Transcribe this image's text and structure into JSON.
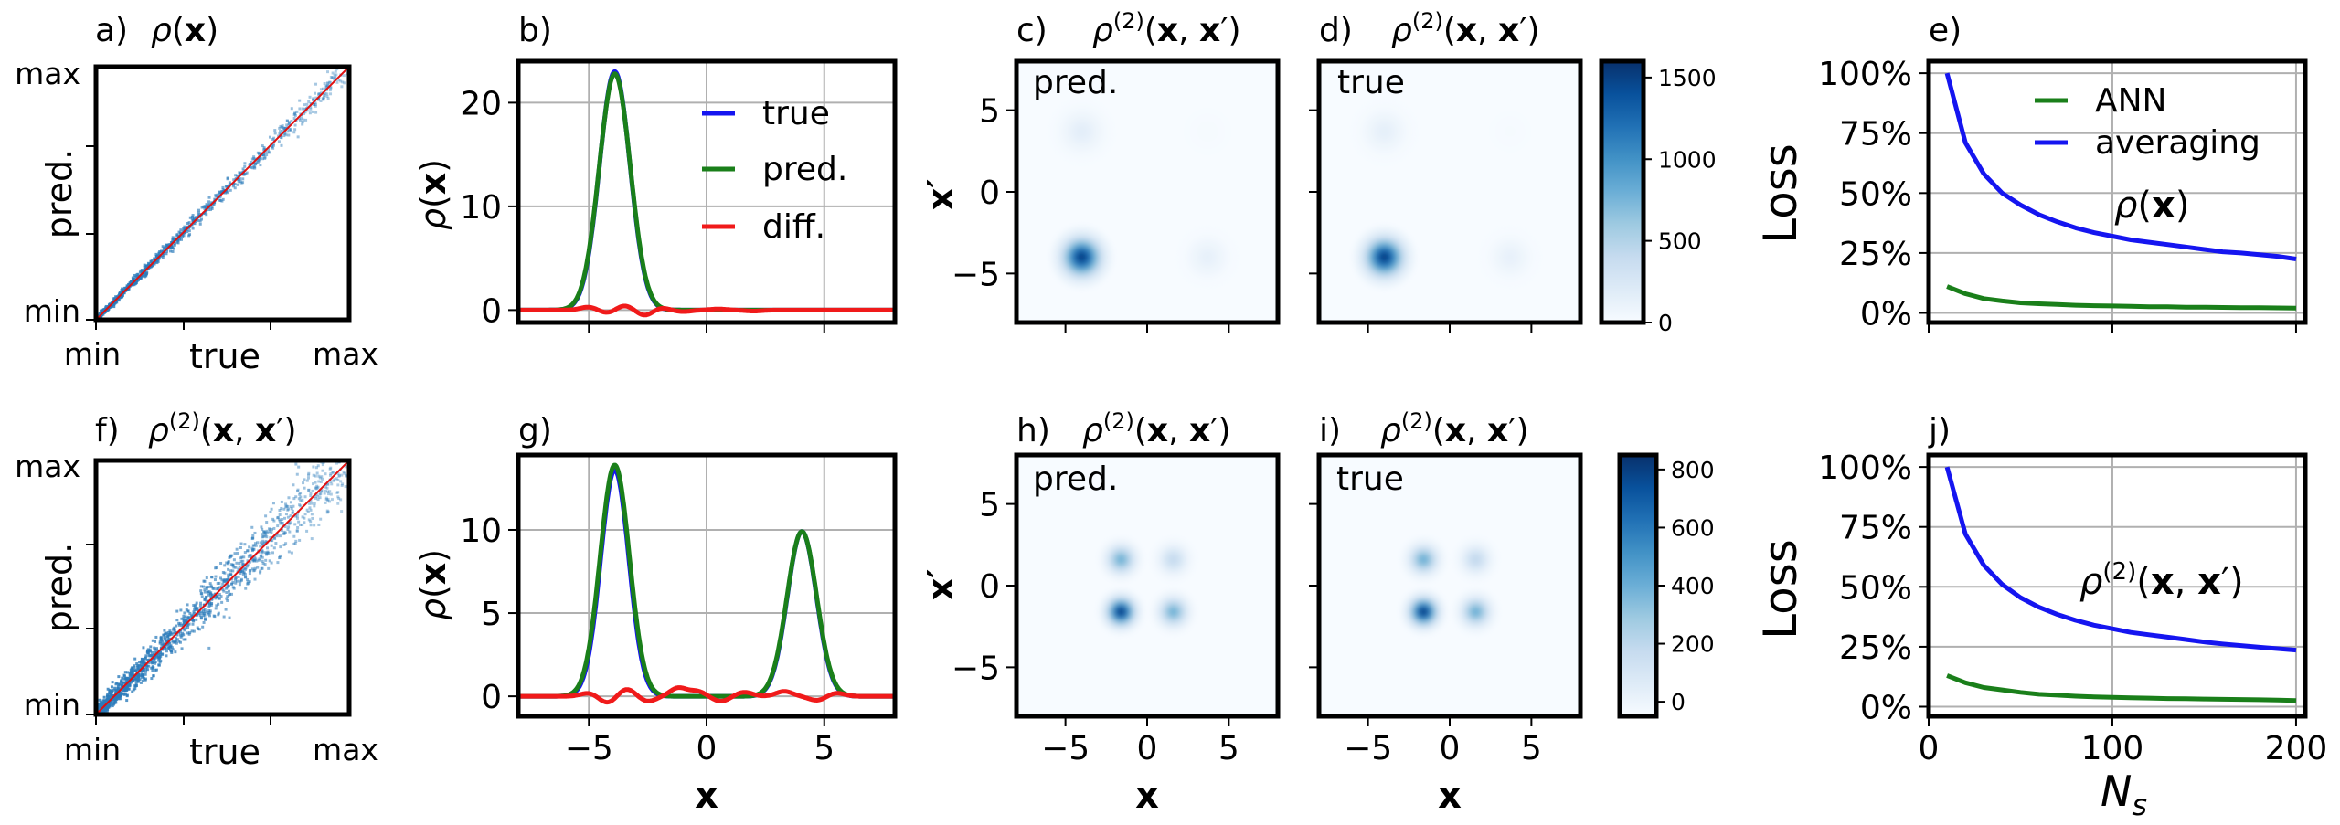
{
  "figure": {
    "background": "#ffffff",
    "border_color": "#000000"
  },
  "colors": {
    "true": "#1515f0",
    "pred": "#1a7f1a",
    "diff": "#f01a1a",
    "grid": "#b0b0b0",
    "diag": "#e01010"
  },
  "chart_data": [
    {
      "id": "a",
      "type": "scatter",
      "panel_label": "a)",
      "title": "ρ(x)",
      "xlabel": "true",
      "ylabel": "pred.",
      "tick_labels": {
        "min": "min",
        "max": "max"
      },
      "xlim": [
        0,
        1
      ],
      "ylim": [
        0,
        1
      ],
      "spread": 0.018,
      "points_count": 900,
      "description_values": {
        "diagonal": [
          [
            0,
            0
          ],
          [
            1,
            1
          ]
        ]
      }
    },
    {
      "id": "b",
      "type": "line",
      "panel_label": "b)",
      "ylabel": "ρ(x)",
      "xlim": [
        -8,
        8
      ],
      "ylim": [
        -1.2,
        24
      ],
      "xticks": [
        -5,
        0,
        5
      ],
      "yticks": [
        0,
        10,
        20
      ],
      "legend": {
        "position": "top-right",
        "entries": [
          "true",
          "pred.",
          "diff."
        ]
      },
      "series": [
        {
          "name": "true",
          "color": "#1515f0",
          "peaks": [
            {
              "center": -3.9,
              "height": 23.0,
              "width": 0.65
            }
          ]
        },
        {
          "name": "pred.",
          "color": "#1a7f1a",
          "peaks": [
            {
              "center": -3.9,
              "height": 22.8,
              "width": 0.66
            }
          ]
        },
        {
          "name": "diff.",
          "color": "#f01a1a",
          "wiggles": [
            [
              -5,
              0.3
            ],
            [
              -4.2,
              -0.3
            ],
            [
              -3.5,
              0.45
            ],
            [
              -2.6,
              -0.55
            ],
            [
              -2.0,
              0.25
            ],
            [
              -1.0,
              -0.15
            ],
            [
              0.5,
              0.1
            ],
            [
              2.0,
              -0.1
            ]
          ]
        }
      ]
    },
    {
      "id": "c",
      "type": "heatmap",
      "panel_label": "c)",
      "title": "ρ(2)(x,x′)",
      "inset_label": "pred.",
      "xlim": [
        -8,
        8
      ],
      "ylim": [
        -8,
        8
      ],
      "yticks": [
        -5,
        0,
        5
      ],
      "ylabel": "x′",
      "blobs": [
        {
          "x": -4,
          "y": -4,
          "value": 1550,
          "sigma": 0.75
        },
        {
          "x": -4,
          "y": 3.7,
          "value": 170,
          "sigma": 0.8
        },
        {
          "x": 3.7,
          "y": -4,
          "value": 140,
          "sigma": 0.75
        },
        {
          "x": 3.7,
          "y": 3.7,
          "value": 20,
          "sigma": 0.8
        }
      ]
    },
    {
      "id": "d",
      "type": "heatmap",
      "panel_label": "d)",
      "title": "ρ(2)(x,x′)",
      "inset_label": "true",
      "xlim": [
        -8,
        8
      ],
      "ylim": [
        -8,
        8
      ],
      "blobs": [
        {
          "x": -4,
          "y": -4,
          "value": 1550,
          "sigma": 0.75
        },
        {
          "x": -4,
          "y": 3.7,
          "value": 150,
          "sigma": 0.8
        },
        {
          "x": 3.7,
          "y": -4,
          "value": 130,
          "sigma": 0.75
        },
        {
          "x": 3.7,
          "y": 3.7,
          "value": 15,
          "sigma": 0.8
        }
      ]
    },
    {
      "id": "colorbar_top",
      "type": "colorbar",
      "range": [
        0,
        1600
      ],
      "ticks": [
        0,
        500,
        1000,
        1500
      ]
    },
    {
      "id": "e",
      "type": "line",
      "panel_label": "e)",
      "ylabel": "Loss",
      "annotation": "ρ(x)",
      "xlim": [
        0,
        205
      ],
      "ylim": [
        -4,
        105
      ],
      "xticks": [
        0,
        100,
        200
      ],
      "yticks": [
        0,
        25,
        50,
        75,
        100
      ],
      "ytick_labels": [
        "0%",
        "25%",
        "50%",
        "75%",
        "100%"
      ],
      "legend": {
        "position": "top-right",
        "entries": [
          "ANN",
          "averaging"
        ]
      },
      "series": [
        {
          "name": "averaging",
          "color": "#1515f0",
          "x": [
            10,
            20,
            30,
            40,
            50,
            60,
            70,
            80,
            90,
            100,
            110,
            120,
            130,
            140,
            150,
            160,
            170,
            180,
            190,
            200
          ],
          "y": [
            100,
            71,
            58,
            50,
            45,
            41,
            38,
            35.5,
            33.5,
            32,
            30.5,
            29.5,
            28.5,
            27.5,
            26.5,
            25.5,
            25,
            24.3,
            23.6,
            22.5
          ]
        },
        {
          "name": "ANN",
          "color": "#1a7f1a",
          "x": [
            10,
            20,
            30,
            40,
            50,
            60,
            70,
            80,
            90,
            100,
            110,
            120,
            130,
            140,
            150,
            160,
            170,
            180,
            190,
            200
          ],
          "y": [
            11,
            8,
            6,
            5,
            4.2,
            3.8,
            3.5,
            3.2,
            3.0,
            2.9,
            2.8,
            2.6,
            2.6,
            2.4,
            2.4,
            2.3,
            2.2,
            2.2,
            2.1,
            2.0
          ]
        }
      ]
    },
    {
      "id": "f",
      "type": "scatter",
      "panel_label": "f)",
      "title": "ρ(2)(x,x′)",
      "xlabel": "true",
      "ylabel": "pred.",
      "tick_labels": {
        "min": "min",
        "max": "max"
      },
      "xlim": [
        0,
        1
      ],
      "ylim": [
        0,
        1
      ],
      "spread": 0.05,
      "points_count": 1400,
      "description_values": {
        "diagonal": [
          [
            0,
            0
          ],
          [
            1,
            1
          ]
        ]
      }
    },
    {
      "id": "g",
      "type": "line",
      "panel_label": "g)",
      "ylabel": "ρ(x)",
      "xlabel": "x",
      "xlim": [
        -8,
        8
      ],
      "ylim": [
        -1.2,
        14.5
      ],
      "xticks": [
        -5,
        0,
        5
      ],
      "yticks": [
        0,
        5,
        10
      ],
      "series": [
        {
          "name": "true",
          "color": "#1515f0",
          "peaks": [
            {
              "center": -3.9,
              "height": 13.6,
              "width": 0.6
            },
            {
              "center": 4.05,
              "height": 9.9,
              "width": 0.62
            }
          ]
        },
        {
          "name": "pred.",
          "color": "#1a7f1a",
          "peaks": [
            {
              "center": -3.9,
              "height": 13.9,
              "width": 0.62
            },
            {
              "center": 4.05,
              "height": 9.9,
              "width": 0.63
            }
          ]
        },
        {
          "name": "diff.",
          "color": "#f01a1a",
          "wiggles": [
            [
              -5,
              0.2
            ],
            [
              -4.2,
              -0.4
            ],
            [
              -3.4,
              0.45
            ],
            [
              -2.5,
              -0.3
            ],
            [
              -1.2,
              0.5
            ],
            [
              -0.4,
              0.3
            ],
            [
              0.6,
              -0.3
            ],
            [
              1.6,
              0.25
            ],
            [
              3.3,
              0.3
            ],
            [
              4.7,
              -0.25
            ],
            [
              5.5,
              0.2
            ]
          ]
        }
      ]
    },
    {
      "id": "h",
      "type": "heatmap",
      "panel_label": "h)",
      "title": "ρ(2)(x,x′)",
      "inset_label": "pred.",
      "xlim": [
        -8,
        8
      ],
      "ylim": [
        -8,
        8
      ],
      "xticks": [
        -5,
        0,
        5
      ],
      "yticks": [
        -5,
        0,
        5
      ],
      "xlabel": "x",
      "ylabel": "x′",
      "blobs": [
        {
          "x": -1.6,
          "y": -1.6,
          "value": 820,
          "sigma": 0.55
        },
        {
          "x": 1.6,
          "y": -1.6,
          "value": 430,
          "sigma": 0.55
        },
        {
          "x": -1.6,
          "y": 1.6,
          "value": 430,
          "sigma": 0.55
        },
        {
          "x": 1.6,
          "y": 1.6,
          "value": 220,
          "sigma": 0.55
        }
      ]
    },
    {
      "id": "i",
      "type": "heatmap",
      "panel_label": "i)",
      "title": "ρ(2)(x,x′)",
      "inset_label": "true",
      "xlim": [
        -8,
        8
      ],
      "ylim": [
        -8,
        8
      ],
      "xticks": [
        -5,
        0,
        5
      ],
      "xlabel": "x",
      "blobs": [
        {
          "x": -1.6,
          "y": -1.6,
          "value": 820,
          "sigma": 0.55
        },
        {
          "x": 1.6,
          "y": -1.6,
          "value": 440,
          "sigma": 0.55
        },
        {
          "x": -1.6,
          "y": 1.6,
          "value": 440,
          "sigma": 0.55
        },
        {
          "x": 1.6,
          "y": 1.6,
          "value": 230,
          "sigma": 0.55
        }
      ]
    },
    {
      "id": "colorbar_bottom",
      "type": "colorbar",
      "range": [
        -50,
        850
      ],
      "ticks": [
        0,
        200,
        400,
        600,
        800
      ]
    },
    {
      "id": "j",
      "type": "line",
      "panel_label": "j)",
      "ylabel": "Loss",
      "xlabel": "N_s",
      "annotation": "ρ(2)(x,x′)",
      "xlim": [
        0,
        205
      ],
      "ylim": [
        -4,
        105
      ],
      "xticks": [
        0,
        100,
        200
      ],
      "yticks": [
        0,
        25,
        50,
        75,
        100
      ],
      "ytick_labels": [
        "0%",
        "25%",
        "50%",
        "75%",
        "100%"
      ],
      "series": [
        {
          "name": "averaging",
          "color": "#1515f0",
          "x": [
            10,
            20,
            30,
            40,
            50,
            60,
            70,
            80,
            90,
            100,
            110,
            120,
            130,
            140,
            150,
            160,
            170,
            180,
            190,
            200
          ],
          "y": [
            100,
            72,
            59,
            51,
            45.5,
            41.5,
            38.5,
            36,
            34,
            32.5,
            31,
            30,
            29,
            28,
            27,
            26.2,
            25.5,
            24.8,
            24.2,
            23.6
          ]
        },
        {
          "name": "ANN",
          "color": "#1a7f1a",
          "x": [
            10,
            20,
            30,
            40,
            50,
            60,
            70,
            80,
            90,
            100,
            110,
            120,
            130,
            140,
            150,
            160,
            170,
            180,
            190,
            200
          ],
          "y": [
            13,
            10,
            8,
            7,
            6,
            5.2,
            4.8,
            4.4,
            4.1,
            3.9,
            3.7,
            3.6,
            3.4,
            3.3,
            3.2,
            3.1,
            3.0,
            2.9,
            2.8,
            2.6
          ]
        }
      ]
    }
  ]
}
